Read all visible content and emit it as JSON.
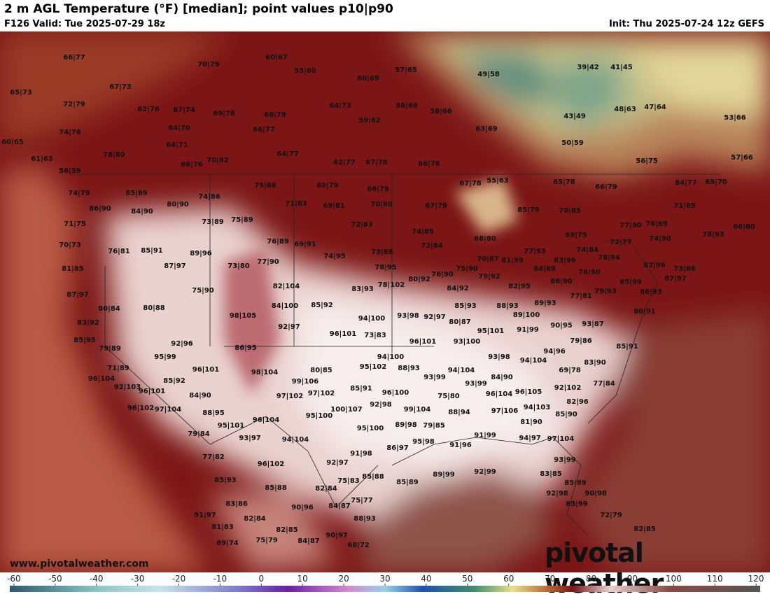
{
  "header": {
    "title": "2 m AGL Temperature (°F) [median]; point values p10|p90",
    "valid": "F126 Valid: Tue 2025-07-29 18z",
    "init": "Init: Thu 2025-07-24 12z GEFS"
  },
  "footer": {
    "site": "www.pivotalweather.com",
    "logo": "pivotal weather"
  },
  "colorbar": {
    "lim": [
      -61,
      121
    ],
    "ticks": [
      -60,
      -50,
      -40,
      -30,
      -20,
      -10,
      0,
      10,
      20,
      30,
      40,
      50,
      60,
      70,
      80,
      90,
      100,
      110,
      120
    ]
  },
  "points": [
    "66|77",
    "60|67",
    "70|79",
    "55|60",
    "57|65",
    "49|58",
    "39|42",
    "41|45",
    "65|73",
    "67|73",
    "60|69",
    "72|79",
    "62|76",
    "67|74",
    "69|78",
    "68|79",
    "64|73",
    "58|69",
    "58|66",
    "48|63",
    "47|64",
    "59|62",
    "43|49",
    "53|66",
    "74|78",
    "64|70",
    "66|77",
    "63|69",
    "60|65",
    "64|71",
    "78|80",
    "64|77",
    "50|59",
    "61|63",
    "66|76",
    "70|82",
    "62|77",
    "67|78",
    "66|76",
    "56|75",
    "57|66",
    "56|59",
    "55|63",
    "67|78",
    "65|78",
    "66|79",
    "84|77",
    "69|70",
    "75|86",
    "69|79",
    "66|79",
    "74|79",
    "85|89",
    "74|86",
    "80|90",
    "71|83",
    "69|81",
    "70|80",
    "67|79",
    "71|85",
    "86|90",
    "84|90",
    "85|79",
    "70|85",
    "71|75",
    "73|89",
    "75|89",
    "72|83",
    "74|85",
    "77|90",
    "76|89",
    "78|93",
    "66|80",
    "70|73",
    "68|80",
    "69|75",
    "72|77",
    "74|90",
    "76|81",
    "85|91",
    "76|89",
    "69|91",
    "72|84",
    "74|84",
    "89|96",
    "74|95",
    "73|88",
    "77|93",
    "70|87",
    "81|99",
    "84|89",
    "83|96",
    "78|94",
    "87|97",
    "73|80",
    "77|90",
    "78|95",
    "81|85",
    "75|90",
    "76|90",
    "76|90",
    "82|96",
    "73|86",
    "79|92",
    "80|92",
    "84|92",
    "86|90",
    "75|90",
    "82|104",
    "78|102",
    "83|93",
    "82|95",
    "79|93",
    "85|99",
    "87|97",
    "86|93",
    "87|97",
    "77|81",
    "80|84",
    "80|88",
    "84|100",
    "85|92",
    "85|93",
    "88|93",
    "89|93",
    "89|100",
    "80|91",
    "98|105",
    "94|100",
    "93|98",
    "92|97",
    "80|87",
    "83|92",
    "92|97",
    "91|99",
    "90|95",
    "93|87",
    "95|101",
    "96|101",
    "73|83",
    "85|95",
    "92|96",
    "96|101",
    "93|100",
    "79|86",
    "85|91",
    "79|89",
    "86|95",
    "94|96",
    "95|99",
    "94|100",
    "93|98",
    "94|104",
    "83|90",
    "71|89",
    "96|101",
    "95|102",
    "88|93",
    "80|85",
    "98|104",
    "94|104",
    "69|78",
    "96|104",
    "85|92",
    "99|106",
    "93|99",
    "93|99",
    "84|90",
    "77|84",
    "92|103",
    "96|101",
    "85|91",
    "97|102",
    "96|100",
    "96|104",
    "96|105",
    "92|102",
    "84|90",
    "97|102",
    "75|80",
    "96|102",
    "97|104",
    "92|98",
    "100|107",
    "99|104",
    "97|106",
    "94|103",
    "82|96",
    "88|95",
    "95|100",
    "88|94",
    "85|90",
    "96|104",
    "81|90",
    "95|101",
    "95|100",
    "89|98",
    "79|85",
    "79|84",
    "93|97",
    "94|104",
    "91|99",
    "94|97",
    "97|104",
    "95|98",
    "86|97",
    "91|96",
    "77|82",
    "91|98",
    "96|102",
    "92|97",
    "93|99",
    "83|85",
    "85|88",
    "85|89",
    "89|99",
    "92|99",
    "85|93",
    "75|83",
    "85|89",
    "85|88",
    "82|84",
    "92|98",
    "90|98",
    "75|77",
    "83|86",
    "84|87",
    "90|96",
    "85|99",
    "91|97",
    "82|84",
    "88|93",
    "72|79",
    "81|83",
    "82|85",
    "82|85",
    "69|74",
    "75|79",
    "84|87",
    "90|97",
    "68|72"
  ]
}
